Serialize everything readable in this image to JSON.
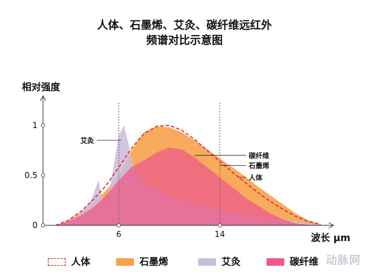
{
  "chart_data": {
    "type": "area",
    "title": "人体、石墨烯、艾灸、碳纤维远红外",
    "subtitle": "频谱对比示意图",
    "ylabel": "相对强度",
    "xlabel": "波长 μm",
    "xlim": [
      0,
      23
    ],
    "ylim": [
      0,
      1.25
    ],
    "x_ticks": [
      6,
      14
    ],
    "y_ticks": [
      0,
      0.5,
      1
    ],
    "y_tick_labels": [
      "0",
      "0.5",
      "1"
    ],
    "grid_vertical_at": [
      6,
      14
    ],
    "series": [
      {
        "name": "人体",
        "color": "#e8213c",
        "style": "dashed",
        "x": [
          1,
          2,
          3,
          4,
          5,
          6,
          7,
          8,
          9,
          10,
          11,
          12,
          13,
          14,
          15,
          16,
          17,
          18,
          19,
          20,
          21,
          22
        ],
        "y": [
          0,
          0.05,
          0.14,
          0.26,
          0.4,
          0.58,
          0.77,
          0.92,
          0.99,
          1.0,
          0.95,
          0.86,
          0.75,
          0.64,
          0.53,
          0.43,
          0.33,
          0.24,
          0.16,
          0.09,
          0.04,
          0.01
        ]
      },
      {
        "name": "石墨烯",
        "color": "#f7a24b",
        "style": "fill",
        "x": [
          1,
          2,
          3,
          4,
          5,
          6,
          7,
          8,
          9,
          10,
          11,
          12,
          13,
          14,
          15,
          16,
          17,
          18,
          19,
          20,
          21,
          22
        ],
        "y": [
          0,
          0.05,
          0.13,
          0.23,
          0.35,
          0.5,
          0.75,
          0.93,
          0.99,
          0.98,
          0.93,
          0.85,
          0.76,
          0.67,
          0.58,
          0.49,
          0.39,
          0.3,
          0.21,
          0.12,
          0.05,
          0.01
        ]
      },
      {
        "name": "艾灸",
        "color": "#c9bcdb",
        "style": "fill",
        "x": [
          1,
          2,
          3,
          3.8,
          4.4,
          4.8,
          5.2,
          5.6,
          6,
          6.4,
          6.8,
          7.2,
          8,
          10,
          14,
          22
        ],
        "y": [
          0,
          0.04,
          0.12,
          0.25,
          0.45,
          0.2,
          0.3,
          0.6,
          0.9,
          1.0,
          0.8,
          0.55,
          0.42,
          0.3,
          0.15,
          0
        ]
      },
      {
        "name": "碳纤维",
        "color": "#ee5a8a",
        "style": "fill",
        "x": [
          1,
          2,
          3,
          4,
          5,
          6,
          7,
          8,
          9,
          10,
          11,
          12,
          13,
          14,
          15,
          16,
          17,
          18,
          19,
          20,
          21,
          22
        ],
        "y": [
          0,
          0.04,
          0.1,
          0.18,
          0.3,
          0.45,
          0.58,
          0.65,
          0.73,
          0.78,
          0.76,
          0.68,
          0.58,
          0.48,
          0.38,
          0.28,
          0.2,
          0.12,
          0.06,
          0.02,
          0.005,
          0
        ]
      }
    ],
    "annotations": [
      {
        "text": "艾灸",
        "x": 6.2,
        "y": 0.85,
        "side": "left"
      },
      {
        "text": "碳纤维",
        "x": 12,
        "y": 0.7,
        "side": "right"
      },
      {
        "text": "石墨烯",
        "x": 14,
        "y": 0.6,
        "side": "right"
      },
      {
        "text": "人体",
        "x": 15.5,
        "y": 0.48,
        "side": "right"
      }
    ],
    "legend": {
      "placement": "bottom",
      "items": [
        {
          "name": "人体",
          "color": "#e8213c",
          "style": "dashed"
        },
        {
          "name": "石墨烯",
          "color": "#f7a24b",
          "style": "fill"
        },
        {
          "name": "艾灸",
          "color": "#c9bcdb",
          "style": "fill"
        },
        {
          "name": "碳纤维",
          "color": "#ee5a8a",
          "style": "fill"
        }
      ]
    },
    "watermark": "动脉网"
  }
}
